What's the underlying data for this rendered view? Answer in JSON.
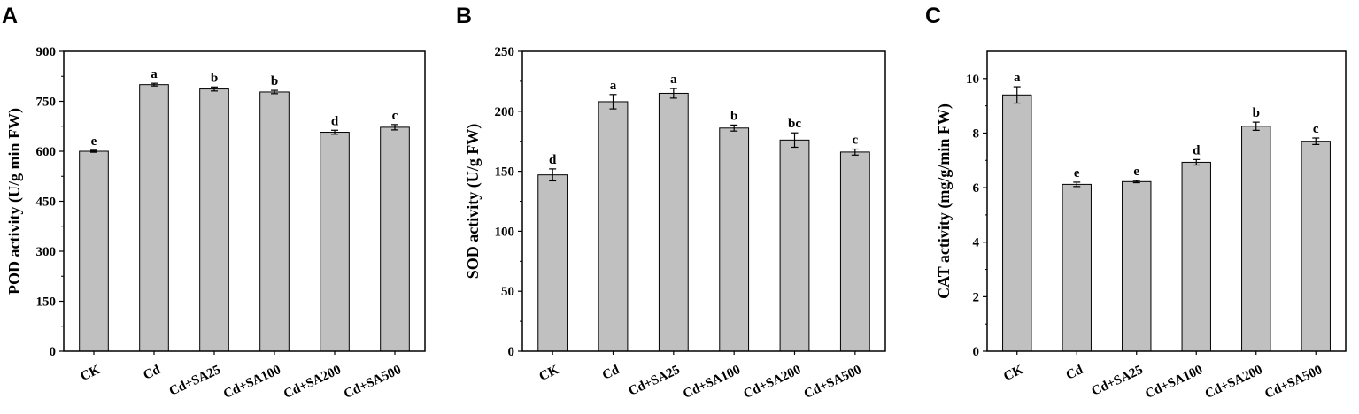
{
  "chart_data": [
    {
      "panel": "A",
      "type": "bar",
      "ylabel": "POD activity (U/g min FW)",
      "categories": [
        "CK",
        "Cd",
        "Cd+SA25",
        "Cd+SA100",
        "Cd+SA200",
        "Cd+SA500"
      ],
      "values": [
        600,
        800,
        787,
        778,
        657,
        672
      ],
      "errors": [
        3,
        4,
        6,
        5,
        6,
        8
      ],
      "significance": [
        "e",
        "a",
        "b",
        "b",
        "d",
        "c"
      ],
      "ylim": [
        0,
        900
      ],
      "yticks": [
        0,
        150,
        300,
        450,
        600,
        750,
        900
      ],
      "bar_color": "#c0c0c0"
    },
    {
      "panel": "B",
      "type": "bar",
      "ylabel": "SOD activity (U/g FW)",
      "categories": [
        "CK",
        "Cd",
        "Cd+SA25",
        "Cd+SA100",
        "Cd+SA200",
        "Cd+SA500"
      ],
      "values": [
        147,
        208,
        215,
        186,
        176,
        166
      ],
      "errors": [
        5,
        6,
        4,
        2.5,
        6,
        2.5
      ],
      "significance": [
        "d",
        "a",
        "a",
        "b",
        "bc",
        "c"
      ],
      "ylim": [
        0,
        250
      ],
      "yticks": [
        0,
        50,
        100,
        150,
        200,
        250
      ],
      "bar_color": "#c0c0c0"
    },
    {
      "panel": "C",
      "type": "bar",
      "ylabel": "CAT activity (mg/g/min FW)",
      "categories": [
        "CK",
        "Cd",
        "Cd+SA25",
        "Cd+SA100",
        "Cd+SA200",
        "Cd+SA500"
      ],
      "values": [
        9.4,
        6.12,
        6.22,
        6.93,
        8.25,
        7.7
      ],
      "errors": [
        0.3,
        0.08,
        0.04,
        0.1,
        0.15,
        0.12
      ],
      "significance": [
        "a",
        "e",
        "e",
        "d",
        "b",
        "c"
      ],
      "ylim": [
        0,
        11
      ],
      "yticks": [
        0,
        2,
        4,
        6,
        8,
        10
      ],
      "bar_color": "#c0c0c0"
    }
  ]
}
